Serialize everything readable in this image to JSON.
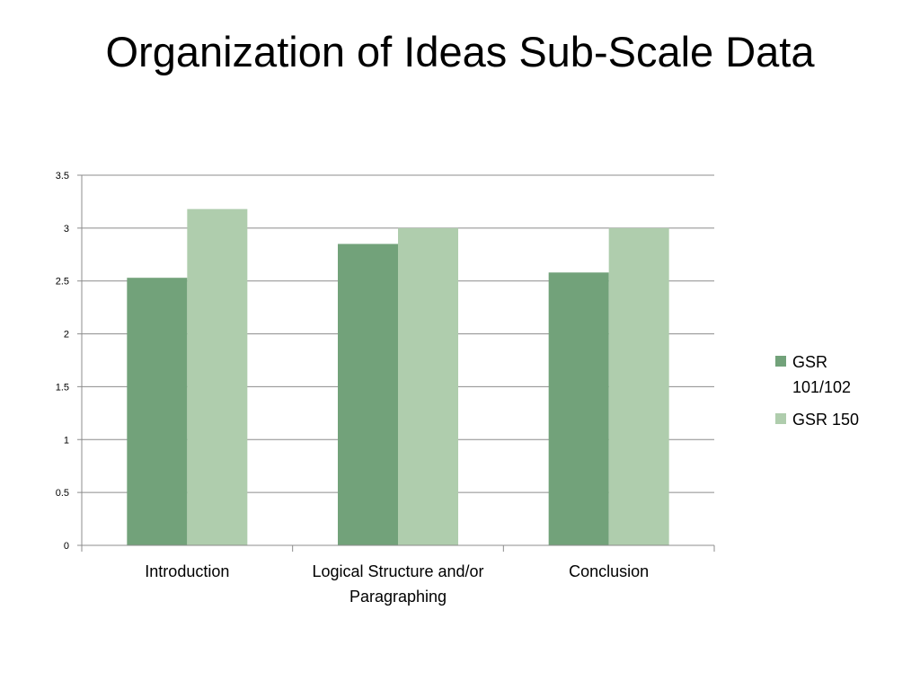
{
  "page": {
    "title": "Organization of Ideas Sub-Scale Data"
  },
  "colors": {
    "series1": "#72a27a",
    "series2": "#afcdad",
    "grid": "#8c8c8c",
    "axis": "#8c8c8c"
  },
  "chart_data": {
    "type": "bar",
    "title": "",
    "xlabel": "",
    "ylabel": "",
    "categories": [
      [
        "Introduction"
      ],
      [
        "Logical Structure and/or",
        "Paragraphing"
      ],
      [
        "Conclusion"
      ]
    ],
    "series": [
      {
        "name": [
          "GSR",
          "101/102"
        ],
        "values": [
          2.53,
          2.85,
          2.58
        ]
      },
      {
        "name": [
          "GSR 150"
        ],
        "values": [
          3.18,
          3.0,
          3.0
        ]
      }
    ],
    "ylim": [
      0,
      3.5
    ],
    "yticks": [
      "0",
      "0.5",
      "1",
      "1.5",
      "2",
      "2.5",
      "3",
      "3.5"
    ],
    "grid": true,
    "legend": "right"
  }
}
